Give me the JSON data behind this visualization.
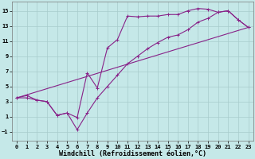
{
  "background_color": "#c5e8e8",
  "line_color": "#882288",
  "linewidth": 0.8,
  "grid_color": "#a8cccc",
  "xlabel": "Windchill (Refroidissement éolien,°C)",
  "xlabel_fontsize": 6,
  "tick_fontsize": 5,
  "xlim": [
    -0.5,
    23.5
  ],
  "ylim": [
    -2.2,
    16.2
  ],
  "yticks": [
    -1,
    1,
    3,
    5,
    7,
    9,
    11,
    13,
    15
  ],
  "xticks": [
    0,
    1,
    2,
    3,
    4,
    5,
    6,
    7,
    8,
    9,
    10,
    11,
    12,
    13,
    14,
    15,
    16,
    17,
    18,
    19,
    20,
    21,
    22,
    23
  ],
  "line1_x": [
    0,
    1,
    2,
    3,
    4,
    5,
    6,
    7,
    8,
    9,
    10,
    11,
    12,
    13,
    14,
    15,
    16,
    17,
    18,
    19,
    20,
    21,
    22,
    23
  ],
  "line1_y": [
    3.5,
    3.8,
    3.2,
    3.0,
    1.2,
    1.5,
    0.9,
    6.8,
    4.8,
    10.1,
    11.2,
    14.3,
    14.2,
    14.3,
    14.3,
    14.5,
    14.5,
    15.0,
    15.3,
    15.2,
    14.8,
    15.0,
    13.8,
    12.8
  ],
  "line2_x": [
    0,
    1,
    2,
    3,
    4,
    5,
    6,
    7,
    8,
    9,
    10,
    11,
    12,
    13,
    14,
    15,
    16,
    17,
    18,
    19,
    20,
    21,
    22,
    23
  ],
  "line2_y": [
    3.5,
    3.5,
    3.2,
    3.0,
    1.2,
    1.5,
    -0.7,
    1.5,
    3.5,
    5.0,
    6.5,
    8.0,
    9.0,
    10.0,
    10.8,
    11.5,
    11.8,
    12.5,
    13.5,
    14.0,
    14.8,
    15.0,
    13.8,
    12.8
  ],
  "line3_x": [
    0,
    23
  ],
  "line3_y": [
    3.5,
    12.8
  ]
}
